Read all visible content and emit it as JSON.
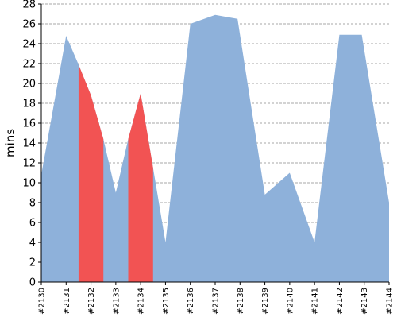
{
  "chart_data": {
    "type": "area",
    "title": "",
    "xlabel": "",
    "ylabel": "mins",
    "ylim": [
      0,
      28
    ],
    "yticks": [
      0,
      2,
      4,
      6,
      8,
      10,
      12,
      14,
      16,
      18,
      20,
      22,
      24,
      26,
      28
    ],
    "categories": [
      "#2130",
      "#2131",
      "#2132",
      "#2133",
      "#2134",
      "#2135",
      "#2136",
      "#2137",
      "#2138",
      "#2139",
      "#2140",
      "#2141",
      "#2142",
      "#2143",
      "#2144"
    ],
    "grid": true,
    "legend": "none",
    "series": [
      {
        "color": "#8eb1da",
        "points": [
          {
            "x": 0,
            "y": 10.8
          },
          {
            "x": 1,
            "y": 24.8
          },
          {
            "x": 1.5,
            "y": 21.9
          },
          {
            "x": 2,
            "y": 18.8
          },
          {
            "x": 2.5,
            "y": 14.4
          },
          {
            "x": 3,
            "y": 9.0
          },
          {
            "x": 3.5,
            "y": 14.4
          },
          {
            "x": 4,
            "y": 19.0
          },
          {
            "x": 4.5,
            "y": 11.5
          },
          {
            "x": 5,
            "y": 4.0
          },
          {
            "x": 6,
            "y": 26.0
          },
          {
            "x": 7,
            "y": 26.9
          },
          {
            "x": 7.9,
            "y": 26.5
          },
          {
            "x": 9,
            "y": 8.8
          },
          {
            "x": 10,
            "y": 11.0
          },
          {
            "x": 11,
            "y": 4.0
          },
          {
            "x": 12,
            "y": 24.9
          },
          {
            "x": 12.9,
            "y": 24.9
          },
          {
            "x": 14,
            "y": 8.0
          }
        ]
      }
    ],
    "highlight_color": "#f25353",
    "highlights": [
      {
        "from": 1.5,
        "to": 2.5
      },
      {
        "from": 3.5,
        "to": 4.5
      }
    ]
  }
}
